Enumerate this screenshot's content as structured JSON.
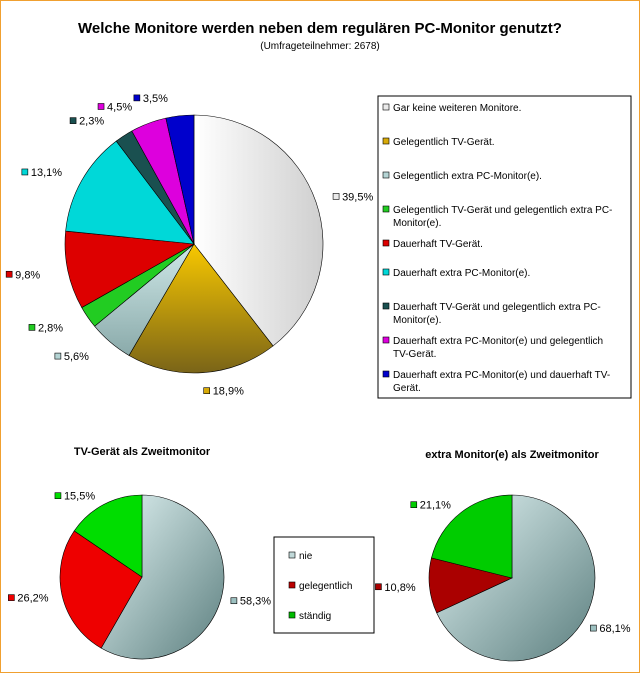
{
  "chart_data": [
    {
      "type": "pie",
      "title": "Welche Monitore werden neben dem regulären PC-Monitor genutzt?",
      "subtitle": "(Umfrageteilnehmer: 2678)",
      "legend_position": "right",
      "categories": [
        "Gar keine weiteren Monitore.",
        "Gelegentlich TV-Gerät.",
        "Gelegentlich extra PC-Monitor(e).",
        "Gelegentlich TV-Gerät und gelegentlich extra PC-Monitor(e).",
        "Dauerhaft TV-Gerät.",
        "Dauerhaft extra PC-Monitor(e).",
        "Dauerhaft TV-Gerät und gelegentlich extra PC-Monitor(e).",
        "Dauerhaft extra PC-Monitor(e) und gelegentlich TV-Gerät.",
        "Dauerhaft extra PC-Monitor(e) und dauerhaft TV-Gerät."
      ],
      "legend_lines": [
        [
          "Gar keine weiteren Monitore."
        ],
        [
          "Gelegentlich TV-Gerät."
        ],
        [
          "Gelegentlich extra PC-Monitor(e)."
        ],
        [
          "Gelegentlich TV-Gerät und gelegentlich extra PC-",
          "Monitor(e)."
        ],
        [
          "Dauerhaft TV-Gerät."
        ],
        [
          "Dauerhaft extra PC-Monitor(e)."
        ],
        [
          "Dauerhaft TV-Gerät und gelegentlich extra PC-",
          "Monitor(e)."
        ],
        [
          "Dauerhaft extra PC-Monitor(e) und gelegentlich",
          "TV-Gerät."
        ],
        [
          "Dauerhaft extra PC-Monitor(e) und dauerhaft TV-",
          "Gerät."
        ]
      ],
      "values": [
        39.5,
        18.9,
        5.6,
        2.8,
        9.8,
        13.1,
        2.3,
        4.5,
        3.5
      ],
      "labels": [
        "39,5%",
        "18,9%",
        "5,6%",
        "2,8%",
        "9,8%",
        "13,1%",
        "2,3%",
        "4,5%",
        "3,5%"
      ],
      "colors": [
        "#eaeaea",
        "#d8aa08",
        "#b4d4d4",
        "#22cc22",
        "#dd0000",
        "#00d8d8",
        "#1a5050",
        "#dd00dd",
        "#0000cc"
      ]
    },
    {
      "type": "pie",
      "title": "TV-Gerät als Zweitmonitor",
      "categories": [
        "nie",
        "gelegentlich",
        "ständig"
      ],
      "values": [
        58.3,
        26.2,
        15.5
      ],
      "labels": [
        "58,3%",
        "26,2%",
        "15,5%"
      ],
      "colors": [
        "#9cc0c0",
        "#ee0000",
        "#00dd00"
      ]
    },
    {
      "type": "pie",
      "title": "extra Monitor(e) als Zweitmonitor",
      "categories": [
        "nie",
        "gelegentlich",
        "ständig"
      ],
      "values": [
        68.1,
        10.8,
        21.1
      ],
      "labels": [
        "68,1%",
        "10,8%",
        "21,1%"
      ],
      "colors": [
        "#9cc0c0",
        "#aa0000",
        "#00cc00"
      ]
    }
  ],
  "shared_legend": {
    "items": [
      "nie",
      "gelegentlich",
      "ständig"
    ],
    "colors": [
      "#c0d8d8",
      "#bb0000",
      "#00bb00"
    ]
  }
}
